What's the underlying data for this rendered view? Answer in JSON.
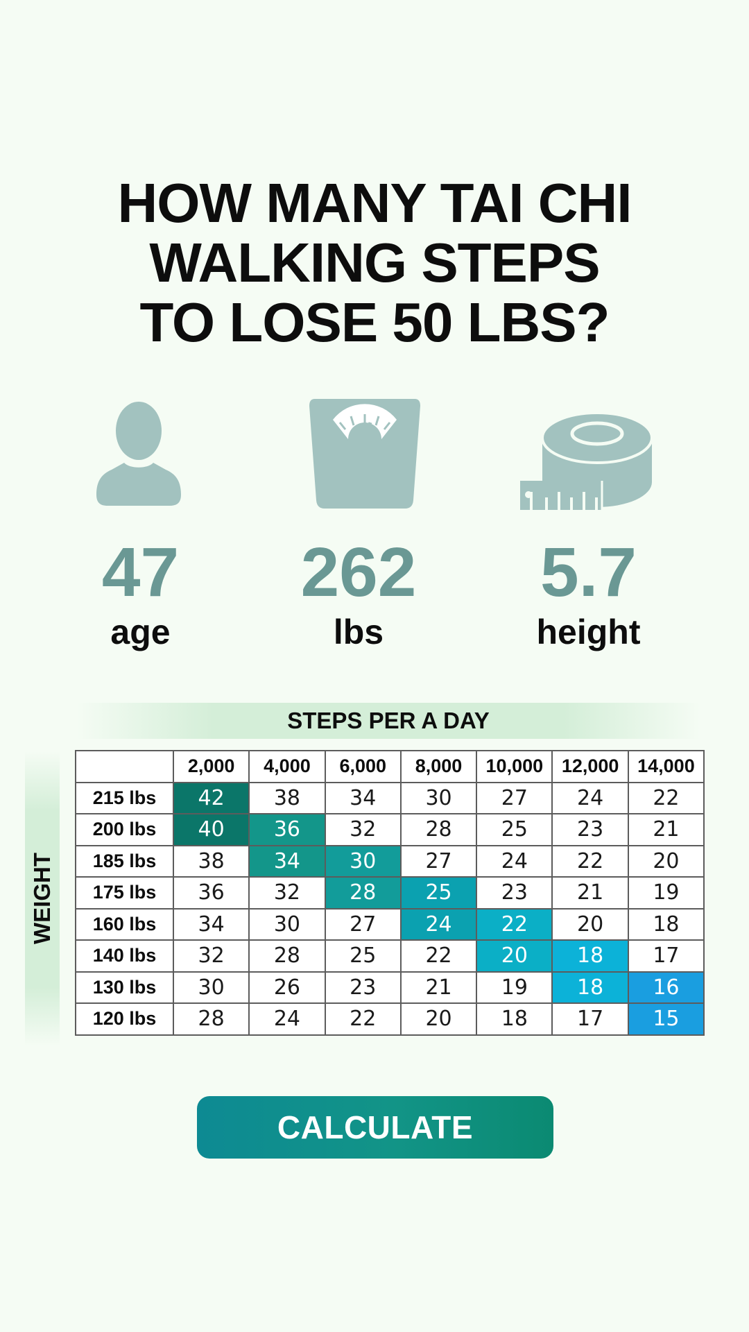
{
  "title": {
    "line1": "HOW MANY TAI CHI",
    "line2": "WALKING STEPS",
    "line3": "TO LOSE 50 LBS?"
  },
  "icons": {
    "age": "person-icon",
    "weight": "scale-icon",
    "height": "tape-measure-icon",
    "color": "#a2c2bf"
  },
  "stats": {
    "age": {
      "value": "47",
      "label": "age"
    },
    "weight": {
      "value": "262",
      "label": "lbs"
    },
    "height": {
      "value": "5.7",
      "label": "height"
    }
  },
  "table": {
    "column_title": "STEPS PER A DAY",
    "row_title": "WEIGHT",
    "columns": [
      "2,000",
      "4,000",
      "6,000",
      "8,000",
      "10,000",
      "12,000",
      "14,000"
    ],
    "rows": [
      {
        "label": "215 lbs",
        "values": [
          "42",
          "38",
          "34",
          "30",
          "27",
          "24",
          "22"
        ]
      },
      {
        "label": "200 lbs",
        "values": [
          "40",
          "36",
          "32",
          "28",
          "25",
          "23",
          "21"
        ]
      },
      {
        "label": "185 lbs",
        "values": [
          "38",
          "34",
          "30",
          "27",
          "24",
          "22",
          "20"
        ]
      },
      {
        "label": "175 lbs",
        "values": [
          "36",
          "32",
          "28",
          "25",
          "23",
          "21",
          "19"
        ]
      },
      {
        "label": "160 lbs",
        "values": [
          "34",
          "30",
          "27",
          "24",
          "22",
          "20",
          "18"
        ]
      },
      {
        "label": "140 lbs",
        "values": [
          "32",
          "28",
          "25",
          "22",
          "20",
          "18",
          "17"
        ]
      },
      {
        "label": "130 lbs",
        "values": [
          "30",
          "26",
          "23",
          "21",
          "19",
          "18",
          "16"
        ]
      },
      {
        "label": "120 lbs",
        "values": [
          "28",
          "24",
          "22",
          "20",
          "18",
          "17",
          "15"
        ]
      }
    ],
    "highlights": [
      {
        "row": 0,
        "col": 0,
        "color": "#0b7669"
      },
      {
        "row": 1,
        "col": 0,
        "color": "#0b7669"
      },
      {
        "row": 1,
        "col": 1,
        "color": "#13968a"
      },
      {
        "row": 2,
        "col": 1,
        "color": "#13968a"
      },
      {
        "row": 2,
        "col": 2,
        "color": "#129c9a"
      },
      {
        "row": 3,
        "col": 2,
        "color": "#129c9a"
      },
      {
        "row": 3,
        "col": 3,
        "color": "#0ba1b0"
      },
      {
        "row": 4,
        "col": 3,
        "color": "#0ba1b0"
      },
      {
        "row": 4,
        "col": 4,
        "color": "#0bafc6"
      },
      {
        "row": 5,
        "col": 4,
        "color": "#0bafc6"
      },
      {
        "row": 5,
        "col": 5,
        "color": "#0cb2d8"
      },
      {
        "row": 6,
        "col": 5,
        "color": "#0cb2d8"
      },
      {
        "row": 6,
        "col": 6,
        "color": "#1a9ee0"
      },
      {
        "row": 7,
        "col": 6,
        "color": "#1a9ee0"
      }
    ]
  },
  "button": {
    "label": "CALCULATE"
  }
}
